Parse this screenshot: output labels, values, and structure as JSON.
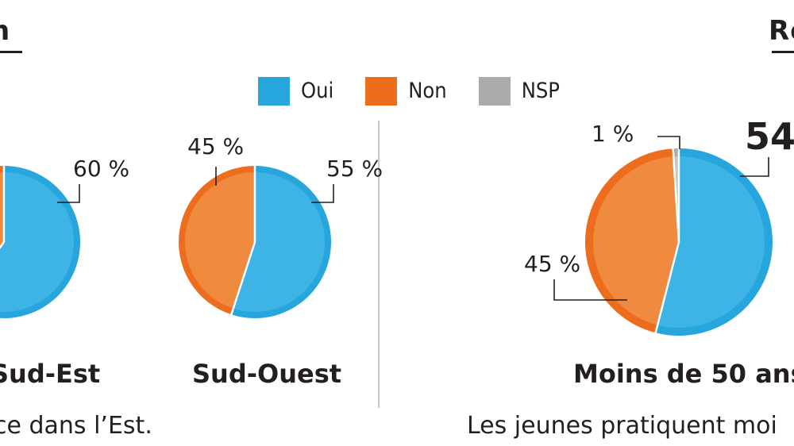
{
  "colors": {
    "oui": "#27a6dd",
    "non": "#ec6d1d",
    "nsp": "#ababab",
    "text": "#231f20"
  },
  "sections": {
    "left_title": "n",
    "right_title": "Ré"
  },
  "legend": [
    {
      "label": "Oui",
      "color": "#27a6dd"
    },
    {
      "label": "Non",
      "color": "#ec6d1d"
    },
    {
      "label": "NSP",
      "color": "#ababab"
    }
  ],
  "chart_data": [
    {
      "type": "pie",
      "title": "Sud-Est",
      "slices": [
        {
          "series": "Oui",
          "value": 60,
          "label": "60 %"
        },
        {
          "series": "Non",
          "value": 40
        }
      ]
    },
    {
      "type": "pie",
      "title": "Sud-Ouest",
      "slices": [
        {
          "series": "Oui",
          "value": 55,
          "label": "55 %"
        },
        {
          "series": "Non",
          "value": 45,
          "label": "45 %"
        }
      ]
    },
    {
      "type": "pie",
      "title": "Moins de 50 ans",
      "slices": [
        {
          "series": "Oui",
          "value": 54,
          "label": "54"
        },
        {
          "series": "Non",
          "value": 45,
          "label": "45 %"
        },
        {
          "series": "NSP",
          "value": 1,
          "label": "1 %"
        }
      ]
    }
  ],
  "captions": {
    "left_text": "ce dans l’Est.",
    "right_text": "Les jeunes pratiquent moi"
  }
}
